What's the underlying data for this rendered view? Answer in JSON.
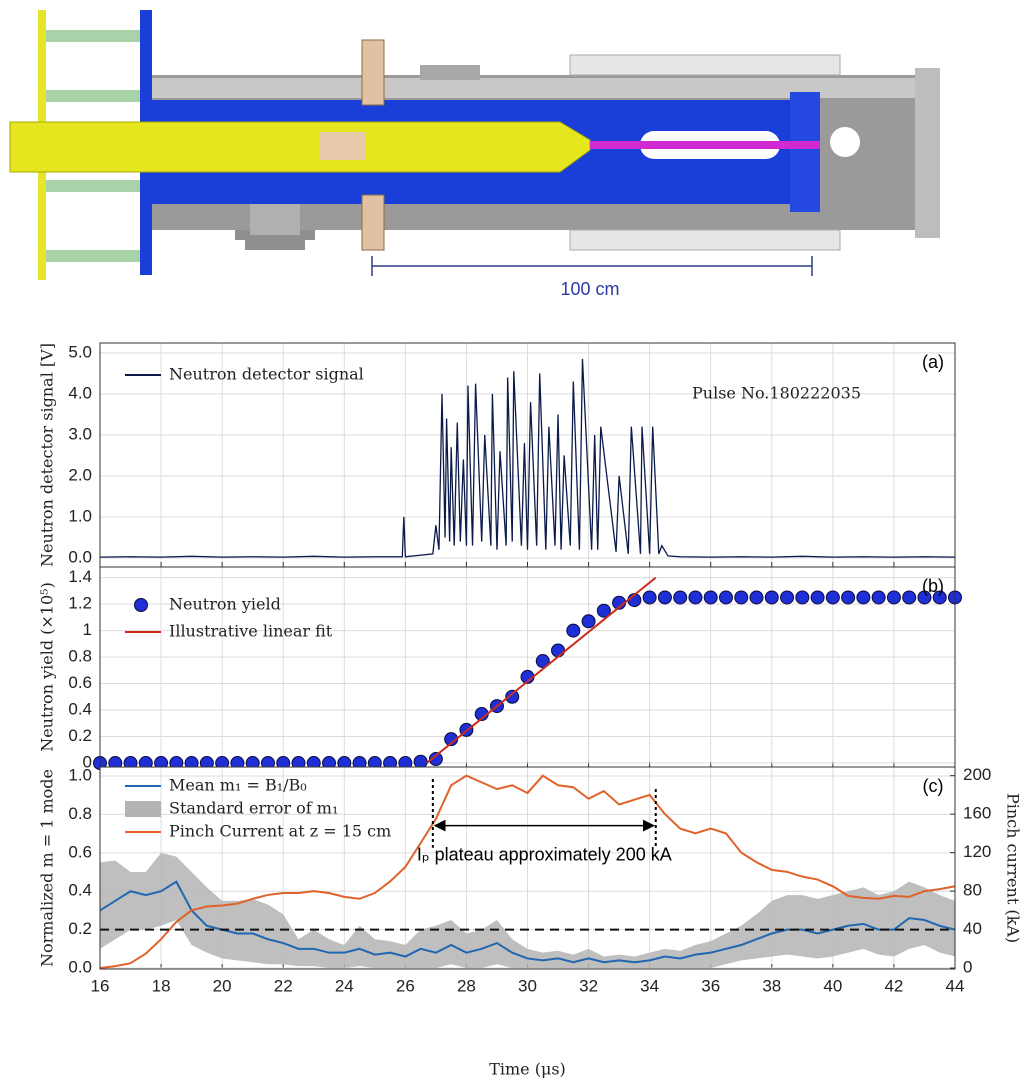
{
  "diagram": {
    "scale_label": "100 cm"
  },
  "chart_data": [
    {
      "type": "line",
      "panel_label": "(a)",
      "ylabel": "Neutron detector signal [V]",
      "ylabel_color": "#333",
      "annotation": "Pulse No.180222035",
      "legend": "upper left",
      "grid": true,
      "xtick_labels": false,
      "xlim": [
        16,
        44
      ],
      "xticks": [
        16,
        18,
        20,
        22,
        24,
        26,
        28,
        30,
        32,
        34,
        36,
        38,
        40,
        42,
        44
      ],
      "ylim": [
        -0.22,
        5.24
      ],
      "yticks": [
        {
          "value": 0,
          "label": "0.0"
        },
        {
          "value": 1,
          "label": "1.0"
        },
        {
          "value": 2,
          "label": "2.0"
        },
        {
          "value": 3,
          "label": "3.0"
        },
        {
          "value": 4,
          "label": "4.0"
        },
        {
          "value": 5,
          "label": "5.0"
        }
      ],
      "series": [
        {
          "name": "Neutron detector signal",
          "color": "#0b1a4a",
          "mode": "line",
          "x": [
            16,
            17,
            18,
            19,
            20,
            21,
            22,
            23,
            24,
            25,
            25.9,
            25.95,
            26.0,
            26.9,
            27.0,
            27.1,
            27.2,
            27.3,
            27.35,
            27.45,
            27.5,
            27.6,
            27.7,
            27.8,
            27.9,
            28.0,
            28.05,
            28.2,
            28.3,
            28.5,
            28.6,
            28.8,
            28.85,
            29.0,
            29.1,
            29.3,
            29.35,
            29.5,
            29.55,
            29.8,
            29.9,
            30.0,
            30.1,
            30.3,
            30.4,
            30.6,
            30.7,
            30.9,
            31.0,
            31.1,
            31.2,
            31.4,
            31.5,
            31.7,
            31.8,
            32.1,
            32.2,
            32.3,
            32.4,
            32.9,
            33.0,
            33.3,
            33.4,
            33.7,
            33.75,
            34.0,
            34.1,
            34.3,
            34.4,
            34.6,
            35,
            36,
            37,
            38,
            39,
            40,
            41,
            42,
            43,
            44
          ],
          "values": [
            0.02,
            0.03,
            0.02,
            0.04,
            0.02,
            0.03,
            0.02,
            0.04,
            0.02,
            0.03,
            0.03,
            1.0,
            0.03,
            0.1,
            0.8,
            0.2,
            4.0,
            0.5,
            3.4,
            0.4,
            2.7,
            0.3,
            3.3,
            0.4,
            2.4,
            0.3,
            4.2,
            0.3,
            4.25,
            0.4,
            3.0,
            0.3,
            4.0,
            0.2,
            2.6,
            0.3,
            4.4,
            0.4,
            4.55,
            0.3,
            2.8,
            0.2,
            3.8,
            0.3,
            4.5,
            0.2,
            3.2,
            0.3,
            3.5,
            0.2,
            2.5,
            0.3,
            4.3,
            0.2,
            4.85,
            0.2,
            3.0,
            0.2,
            3.2,
            0.15,
            2.0,
            0.1,
            3.2,
            0.1,
            3.2,
            0.1,
            3.2,
            0.1,
            0.3,
            0.05,
            0.03,
            0.02,
            0.03,
            0.02,
            0.04,
            0.02,
            0.03,
            0.02,
            0.03,
            0.02
          ]
        }
      ]
    },
    {
      "type": "scatter",
      "panel_label": "(b)",
      "ylabel": "Neutron yield (×10⁵)",
      "ylabel_color": "#333",
      "legend": "upper left",
      "grid": true,
      "xtick_labels": false,
      "xlim": [
        16,
        44
      ],
      "xticks": [
        16,
        18,
        20,
        22,
        24,
        26,
        28,
        30,
        32,
        34,
        36,
        38,
        40,
        42,
        44
      ],
      "ylim": [
        -0.03,
        1.48
      ],
      "yticks": [
        0,
        0.2,
        0.4,
        0.6,
        0.8,
        1,
        1.2,
        1.4
      ],
      "series": [
        {
          "name": "Neutron yield",
          "color": "#1f2fd6",
          "mode": "markers",
          "x": [
            16,
            16.5,
            17,
            17.5,
            18,
            18.5,
            19,
            19.5,
            20,
            20.5,
            21,
            21.5,
            22,
            22.5,
            23,
            23.5,
            24,
            24.5,
            25,
            25.5,
            26,
            26.5,
            27,
            27.5,
            28,
            28.5,
            29,
            29.5,
            30,
            30.5,
            31,
            31.5,
            32,
            32.5,
            33,
            33.5,
            34,
            34.5,
            35,
            35.5,
            36,
            36.5,
            37,
            37.5,
            38,
            38.5,
            39,
            39.5,
            40,
            40.5,
            41,
            41.5,
            42,
            42.5,
            43,
            43.5,
            44
          ],
          "values": [
            0,
            0,
            0,
            0,
            0,
            0,
            0,
            0,
            0,
            0,
            0,
            0,
            0,
            0,
            0,
            0,
            0,
            0,
            0,
            0,
            0,
            0.01,
            0.03,
            0.18,
            0.25,
            0.37,
            0.43,
            0.5,
            0.65,
            0.77,
            0.85,
            1.0,
            1.07,
            1.15,
            1.21,
            1.23,
            1.25,
            1.25,
            1.25,
            1.25,
            1.25,
            1.25,
            1.25,
            1.25,
            1.25,
            1.25,
            1.25,
            1.25,
            1.25,
            1.25,
            1.25,
            1.25,
            1.25,
            1.25,
            1.25,
            1.25,
            1.25
          ]
        },
        {
          "name": "Illustrative linear fit",
          "color": "#cc2a1a",
          "mode": "line",
          "x": [
            26.7,
            34.2
          ],
          "values": [
            0,
            1.4
          ]
        }
      ]
    },
    {
      "type": "line",
      "panel_label": "(c)",
      "ylabel": "Normalized m = 1 mode",
      "ylabel_color": "#2f7cc0",
      "y2label": "Pinch current (kA)",
      "y2label_color": "#e0622a",
      "xlabel": "Time (μs)",
      "legend": "upper left",
      "grid": true,
      "xtick_labels": true,
      "hline": 0.2,
      "plateau": {
        "text": "Iₚ plateau approximately 200 kA",
        "x_start": 26.9,
        "x_end": 34.2
      },
      "xlim": [
        16,
        44
      ],
      "xticks": [
        16,
        18,
        20,
        22,
        24,
        26,
        28,
        30,
        32,
        34,
        36,
        38,
        40,
        42,
        44
      ],
      "ylim": [
        -0.005,
        1.047
      ],
      "yticks": [
        {
          "value": 0,
          "label": "0.0"
        },
        {
          "value": 0.2,
          "label": "0.2"
        },
        {
          "value": 0.4,
          "label": "0.4"
        },
        {
          "value": 0.6,
          "label": "0.6"
        },
        {
          "value": 0.8,
          "label": "0.8"
        },
        {
          "value": 1,
          "label": "1.0"
        }
      ],
      "y2lim": [
        -1,
        209
      ],
      "y2ticks": [
        0,
        40,
        80,
        120,
        160,
        200
      ],
      "series": [
        {
          "name": "Mean m₁ = B₁/B₀",
          "color": "#2066b0",
          "mode": "line",
          "x": [
            16,
            16.5,
            17,
            17.5,
            18,
            18.5,
            19,
            19.5,
            20,
            20.5,
            21,
            21.5,
            22,
            22.5,
            23,
            23.5,
            24,
            24.5,
            25,
            25.5,
            26,
            26.5,
            27,
            27.5,
            28,
            28.5,
            29,
            29.5,
            30,
            30.5,
            31,
            31.5,
            32,
            32.5,
            33,
            33.5,
            34,
            34.5,
            35,
            35.5,
            36,
            36.5,
            37,
            37.5,
            38,
            38.5,
            39,
            39.5,
            40,
            40.5,
            41,
            41.5,
            42,
            42.5,
            43,
            43.5,
            44
          ],
          "values": [
            0.3,
            0.35,
            0.4,
            0.38,
            0.4,
            0.45,
            0.3,
            0.22,
            0.2,
            0.18,
            0.18,
            0.15,
            0.13,
            0.1,
            0.1,
            0.08,
            0.08,
            0.1,
            0.07,
            0.08,
            0.06,
            0.1,
            0.08,
            0.12,
            0.08,
            0.1,
            0.13,
            0.08,
            0.05,
            0.04,
            0.05,
            0.03,
            0.05,
            0.03,
            0.04,
            0.03,
            0.04,
            0.06,
            0.05,
            0.07,
            0.08,
            0.1,
            0.12,
            0.15,
            0.18,
            0.2,
            0.2,
            0.18,
            0.2,
            0.22,
            0.23,
            0.2,
            0.2,
            0.26,
            0.25,
            0.22,
            0.2
          ]
        },
        {
          "name": "Standard error of m₁",
          "color": "#b4b4b4",
          "mode": "band",
          "x": [
            16,
            16.5,
            17,
            17.5,
            18,
            18.5,
            19,
            19.5,
            20,
            20.5,
            21,
            21.5,
            22,
            22.5,
            23,
            23.5,
            24,
            24.5,
            25,
            25.5,
            26,
            26.5,
            27,
            27.5,
            28,
            28.5,
            29,
            29.5,
            30,
            30.5,
            31,
            31.5,
            32,
            32.5,
            33,
            33.5,
            34,
            34.5,
            35,
            35.5,
            36,
            36.5,
            37,
            37.5,
            38,
            38.5,
            39,
            39.5,
            40,
            40.5,
            41,
            41.5,
            42,
            42.5,
            43,
            43.5,
            44
          ],
          "lower": [
            0.1,
            0.15,
            0.2,
            0.2,
            0.22,
            0.25,
            0.12,
            0.08,
            0.05,
            0.04,
            0.03,
            0.02,
            0.02,
            0.01,
            0.01,
            0,
            0,
            0.01,
            0,
            0,
            0,
            0,
            0,
            0.02,
            0,
            0,
            0.02,
            0,
            0,
            0,
            0,
            0,
            0,
            0,
            0,
            0,
            0,
            0,
            0,
            0,
            0,
            0.02,
            0.04,
            0.05,
            0.06,
            0.07,
            0.06,
            0.05,
            0.06,
            0.08,
            0.1,
            0.07,
            0.06,
            0.1,
            0.12,
            0.08,
            0.06
          ],
          "upper": [
            0.55,
            0.56,
            0.5,
            0.5,
            0.6,
            0.58,
            0.5,
            0.42,
            0.35,
            0.35,
            0.36,
            0.33,
            0.28,
            0.15,
            0.2,
            0.15,
            0.12,
            0.22,
            0.15,
            0.14,
            0.12,
            0.2,
            0.22,
            0.25,
            0.18,
            0.2,
            0.25,
            0.15,
            0.1,
            0.08,
            0.09,
            0.07,
            0.1,
            0.06,
            0.07,
            0.06,
            0.08,
            0.1,
            0.09,
            0.12,
            0.14,
            0.18,
            0.22,
            0.28,
            0.35,
            0.38,
            0.38,
            0.36,
            0.38,
            0.4,
            0.42,
            0.38,
            0.4,
            0.45,
            0.42,
            0.38,
            0.35
          ]
        },
        {
          "name": "Pinch Current at z = 15 cm",
          "color": "#e0622a",
          "mode": "line",
          "axis": "y2",
          "x": [
            16,
            16.5,
            17,
            17.5,
            18,
            18.5,
            19,
            19.5,
            20,
            20.5,
            21,
            21.5,
            22,
            22.5,
            23,
            23.5,
            24,
            24.5,
            25,
            25.5,
            26,
            26.5,
            27,
            27.5,
            28,
            28.5,
            29,
            29.5,
            30,
            30.5,
            31,
            31.5,
            32,
            32.5,
            33,
            33.5,
            34,
            34.5,
            35,
            35.5,
            36,
            36.5,
            37,
            37.5,
            38,
            38.5,
            39,
            39.5,
            40,
            40.5,
            41,
            41.5,
            42,
            42.5,
            43,
            43.5,
            44
          ],
          "values": [
            0,
            2,
            5,
            15,
            30,
            48,
            60,
            64,
            65,
            67,
            72,
            76,
            78,
            78,
            80,
            78,
            74,
            72,
            78,
            90,
            105,
            130,
            155,
            190,
            200,
            193,
            186,
            190,
            182,
            200,
            190,
            188,
            176,
            184,
            170,
            175,
            180,
            160,
            145,
            140,
            145,
            140,
            120,
            110,
            102,
            100,
            95,
            92,
            85,
            75,
            73,
            72,
            75,
            74,
            80,
            82,
            85
          ]
        }
      ]
    }
  ]
}
